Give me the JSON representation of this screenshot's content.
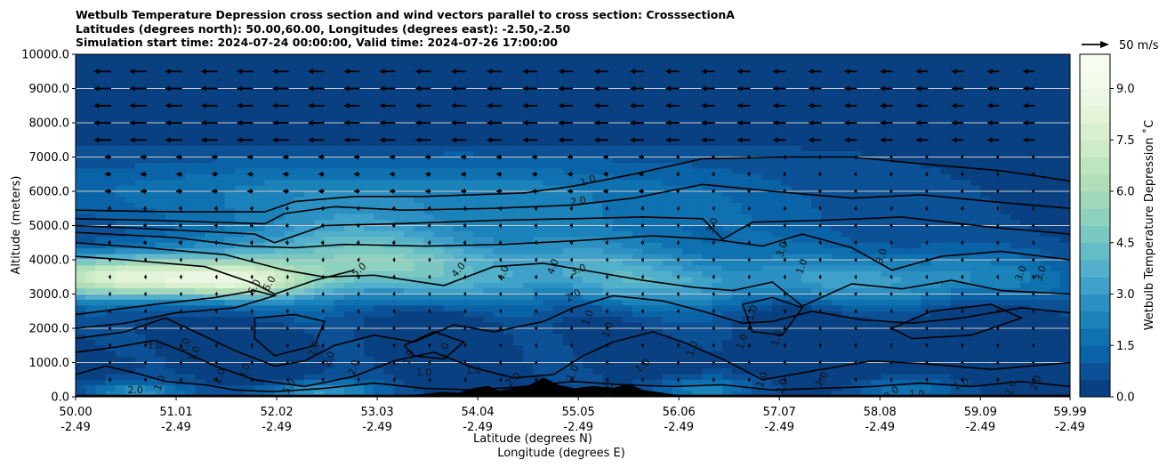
{
  "chart_data": {
    "type": "heatmap",
    "title_lines": [
      "Wetbulb Temperature Depression cross section and wind vectors parallel to cross section: CrosssectionA",
      "Latitudes (degrees north): 50.00,60.00, Longitudes (degrees east): -2.50,-2.50",
      "Simulation start time: 2024-07-24 00:00:00, Valid time: 2024-07-26 17:00:00"
    ],
    "xlabel_lines": [
      "Latitude (degrees N)",
      "Longitude (degrees E)"
    ],
    "ylabel": "Altitude (meters)",
    "x_ticks": [
      {
        "lat": "50.00",
        "lon": "-2.49"
      },
      {
        "lat": "51.01",
        "lon": "-2.49"
      },
      {
        "lat": "52.02",
        "lon": "-2.49"
      },
      {
        "lat": "53.03",
        "lon": "-2.49"
      },
      {
        "lat": "54.04",
        "lon": "-2.49"
      },
      {
        "lat": "55.05",
        "lon": "-2.49"
      },
      {
        "lat": "56.06",
        "lon": "-2.49"
      },
      {
        "lat": "57.07",
        "lon": "-2.49"
      },
      {
        "lat": "58.08",
        "lon": "-2.49"
      },
      {
        "lat": "59.09",
        "lon": "-2.49"
      },
      {
        "lat": "59.99",
        "lon": "-2.49"
      }
    ],
    "xlim": [
      50.0,
      59.99
    ],
    "y_ticks": [
      "0.0",
      "1000.0",
      "2000.0",
      "3000.0",
      "4000.0",
      "5000.0",
      "6000.0",
      "7000.0",
      "8000.0",
      "9000.0",
      "10000.0"
    ],
    "ylim": [
      0,
      10000
    ],
    "grid": "horizontal",
    "colorbar": {
      "label": "Wetbulb Temperature Depression ˚C",
      "ticks": [
        "0.0",
        "1.5",
        "3.0",
        "4.5",
        "6.0",
        "7.5",
        "9.0"
      ],
      "range": [
        0,
        10
      ],
      "levels": 20,
      "colormap": "GnBu_r"
    },
    "quiver_key": {
      "label": "50 m/s"
    },
    "contour_labels": [
      {
        "text": "1.0",
        "x": 50.8,
        "y": 1500,
        "rot": 0
      },
      {
        "text": "1.0",
        "x": 51.2,
        "y": 1250,
        "rot": -70
      },
      {
        "text": "2.0",
        "x": 51.1,
        "y": 1500,
        "rot": -70
      },
      {
        "text": "2.0",
        "x": 50.6,
        "y": 180,
        "rot": 0
      },
      {
        "text": "1.0",
        "x": 50.85,
        "y": 400,
        "rot": -70
      },
      {
        "text": "3.0",
        "x": 51.7,
        "y": 750,
        "rot": -70
      },
      {
        "text": "2.0",
        "x": 51.45,
        "y": 600,
        "rot": -70
      },
      {
        "text": "2.0",
        "x": 52.4,
        "y": 1400,
        "rot": -70
      },
      {
        "text": "2.0",
        "x": 52.55,
        "y": 1100,
        "rot": -70
      },
      {
        "text": "5.0",
        "x": 52.15,
        "y": 300,
        "rot": -60
      },
      {
        "text": "2.0",
        "x": 52.8,
        "y": 850,
        "rot": -70
      },
      {
        "text": "6.0",
        "x": 51.8,
        "y": 3200,
        "rot": -60
      },
      {
        "text": "6.0",
        "x": 51.95,
        "y": 3300,
        "rot": -60
      },
      {
        "text": "5.0",
        "x": 52.85,
        "y": 3700,
        "rot": -40
      },
      {
        "text": "4.0",
        "x": 53.85,
        "y": 3700,
        "rot": -50
      },
      {
        "text": "1.0",
        "x": 53.35,
        "y": 1150,
        "rot": -70
      },
      {
        "text": "1.0",
        "x": 53.7,
        "y": 1350,
        "rot": -70
      },
      {
        "text": "1.0",
        "x": 53.5,
        "y": 700,
        "rot": 0
      },
      {
        "text": "1.0",
        "x": 54.0,
        "y": 750,
        "rot": 0
      },
      {
        "text": "2.0",
        "x": 54.4,
        "y": 500,
        "rot": -40
      },
      {
        "text": "4.0",
        "x": 54.3,
        "y": 3600,
        "rot": -70
      },
      {
        "text": "4.0",
        "x": 54.8,
        "y": 3800,
        "rot": -70
      },
      {
        "text": "3.0",
        "x": 55.05,
        "y": 3700,
        "rot": -20
      },
      {
        "text": "2.0",
        "x": 55.0,
        "y": 2950,
        "rot": -30
      },
      {
        "text": "1.0",
        "x": 55.15,
        "y": 2300,
        "rot": -70
      },
      {
        "text": "1.0",
        "x": 55.35,
        "y": 1950,
        "rot": -70
      },
      {
        "text": "1.0",
        "x": 55.7,
        "y": 900,
        "rot": -40
      },
      {
        "text": "1.0",
        "x": 56.2,
        "y": 1400,
        "rot": -70
      },
      {
        "text": "1.0",
        "x": 56.8,
        "y": 2450,
        "rot": -70
      },
      {
        "text": "1.0",
        "x": 57.05,
        "y": 1700,
        "rot": -70
      },
      {
        "text": "1.0",
        "x": 56.7,
        "y": 1600,
        "rot": -70
      },
      {
        "text": "3.0",
        "x": 56.4,
        "y": 5000,
        "rot": -70
      },
      {
        "text": "1.0",
        "x": 55.15,
        "y": 6300,
        "rot": -20
      },
      {
        "text": "2.0",
        "x": 55.05,
        "y": 5700,
        "rot": -10
      },
      {
        "text": "3.0",
        "x": 57.1,
        "y": 4300,
        "rot": -70
      },
      {
        "text": "1.0",
        "x": 57.3,
        "y": 3800,
        "rot": -70
      },
      {
        "text": "3.0",
        "x": 58.1,
        "y": 4100,
        "rot": -70
      },
      {
        "text": "3.0",
        "x": 59.5,
        "y": 3600,
        "rot": -70
      },
      {
        "text": "3.0",
        "x": 59.7,
        "y": 3600,
        "rot": -70
      },
      {
        "text": "1.0",
        "x": 56.9,
        "y": 500,
        "rot": -70
      },
      {
        "text": "2.0",
        "x": 57.1,
        "y": 300,
        "rot": -70
      },
      {
        "text": "1.0",
        "x": 57.5,
        "y": 500,
        "rot": -60
      },
      {
        "text": "3.0",
        "x": 58.2,
        "y": 100,
        "rot": -40
      },
      {
        "text": "1.0",
        "x": 58.45,
        "y": 60,
        "rot": 0
      },
      {
        "text": "1.0",
        "x": 58.9,
        "y": 350,
        "rot": -20
      },
      {
        "text": "2.0",
        "x": 59.4,
        "y": 250,
        "rot": -70
      },
      {
        "text": "2.0",
        "x": 59.65,
        "y": 400,
        "rot": -70
      },
      {
        "text": "2.0",
        "x": 55.35,
        "y": 200,
        "rot": -70
      },
      {
        "text": "1.0",
        "x": 55.0,
        "y": 700,
        "rot": -70
      }
    ]
  }
}
